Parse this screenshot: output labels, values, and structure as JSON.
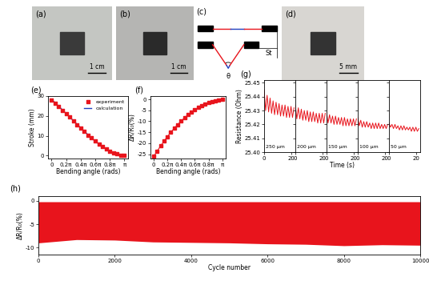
{
  "images": [
    {
      "label": "(a)",
      "scale_bar": "1 cm"
    },
    {
      "label": "(b)",
      "scale_bar": "1 cm"
    },
    {
      "label": "(d)",
      "scale_bar": "5 mm"
    }
  ],
  "diagram": {
    "label": "(c)",
    "angle": "θ",
    "stroke": "St"
  },
  "chart_data": [
    {
      "type": "line",
      "title": "(e)",
      "x_label": "Bending angle (rads)",
      "y_label": "Stroke (mm)",
      "x": [
        0,
        0.157,
        0.314,
        0.471,
        0.628,
        0.785,
        0.942,
        1.1,
        1.257,
        1.414,
        1.571,
        1.728,
        1.885,
        2.042,
        2.199,
        2.356,
        2.513,
        2.67,
        2.827,
        2.985,
        3.142
      ],
      "series": [
        {
          "name": "experiment",
          "type": "scatter",
          "marker": "square",
          "color": "#e8141c",
          "values": [
            28.0,
            26.3,
            24.6,
            22.8,
            21.0,
            19.3,
            17.4,
            15.6,
            13.8,
            12.1,
            10.4,
            8.8,
            7.3,
            5.9,
            4.6,
            3.4,
            2.3,
            1.4,
            0.8,
            0.3,
            0.1
          ]
        },
        {
          "name": "calculation",
          "type": "line",
          "color": "#1f3fbf",
          "values": [
            28.3,
            26.6,
            24.8,
            23.0,
            21.2,
            19.4,
            17.6,
            15.8,
            14.0,
            12.2,
            10.5,
            8.8,
            7.2,
            5.8,
            4.4,
            3.2,
            2.2,
            1.3,
            0.6,
            0.2,
            0.0
          ]
        }
      ],
      "xlim": [
        -0.15,
        3.3
      ],
      "ylim": [
        -1.5,
        30
      ],
      "xticks": [
        0,
        {
          "value": 0.628,
          "label": "0.2π"
        },
        {
          "value": 1.257,
          "label": "0.4π"
        },
        {
          "value": 1.885,
          "label": "0.6π"
        },
        {
          "value": 2.513,
          "label": "0.8π"
        },
        {
          "value": 3.142,
          "label": "π"
        }
      ],
      "yticks": [
        0,
        10,
        20,
        30
      ],
      "legend": "upper right"
    },
    {
      "type": "line",
      "title": "(f)",
      "x_label": "Bending angle (rads)",
      "y_label": "ΔR/R₀(%)",
      "x": [
        0,
        0.157,
        0.314,
        0.471,
        0.628,
        0.785,
        0.942,
        1.1,
        1.257,
        1.414,
        1.571,
        1.728,
        1.885,
        2.042,
        2.199,
        2.356,
        2.513,
        2.67,
        2.827,
        2.985,
        3.142
      ],
      "values": [
        -26.0,
        -23.6,
        -21.3,
        -19.1,
        -17.0,
        -15.0,
        -13.2,
        -11.5,
        -9.9,
        -8.4,
        -7.0,
        -5.8,
        -4.7,
        -3.7,
        -2.8,
        -2.1,
        -1.5,
        -1.0,
        -0.6,
        -0.3,
        0.0
      ],
      "color": "#e8141c",
      "marker": "square",
      "xlim": [
        -0.15,
        3.3
      ],
      "ylim": [
        -27,
        1.5
      ],
      "xticks": [
        0,
        {
          "value": 0.628,
          "label": "0.2π"
        },
        {
          "value": 1.257,
          "label": "0.4π"
        },
        {
          "value": 1.885,
          "label": "0.6π"
        },
        {
          "value": 2.513,
          "label": "0.8π"
        },
        {
          "value": 3.142,
          "label": "π"
        }
      ],
      "yticks": [
        -25,
        -20,
        -15,
        -10,
        -5,
        0
      ]
    },
    {
      "type": "line",
      "title": "(g)",
      "x_label": "Time (s)",
      "y_label": "Resistance (Ohm)",
      "color": "#e8141c",
      "x": [
        0,
        1.1,
        2.2,
        3.3,
        4.4,
        5.5,
        6.6,
        7.7,
        8.8,
        9.9,
        11.0,
        12.1,
        13.2,
        14.3,
        15.4,
        16.5,
        17.6,
        18.7,
        19.8,
        20.9,
        22.0
      ],
      "segments": [
        {
          "label": "250 μm",
          "values": [
            25.445,
            25.43,
            25.441,
            25.429,
            25.439,
            25.428,
            25.437,
            25.427,
            25.436,
            25.427,
            25.435,
            25.426,
            25.434,
            25.426,
            25.434,
            25.425,
            25.433,
            25.425,
            25.433,
            25.425,
            25.432
          ]
        },
        {
          "label": "200 μm",
          "values": [
            25.434,
            25.424,
            25.432,
            25.424,
            25.431,
            25.423,
            25.43,
            25.423,
            25.43,
            25.422,
            25.429,
            25.422,
            25.429,
            25.422,
            25.428,
            25.421,
            25.428,
            25.421,
            25.428,
            25.421,
            25.428
          ]
        },
        {
          "label": "150 μm",
          "values": [
            25.429,
            25.421,
            25.427,
            25.421,
            25.426,
            25.42,
            25.426,
            25.42,
            25.425,
            25.42,
            25.425,
            25.419,
            25.425,
            25.419,
            25.424,
            25.419,
            25.424,
            25.419,
            25.424,
            25.419,
            25.424
          ]
        },
        {
          "label": "100 μm",
          "values": [
            25.425,
            25.419,
            25.423,
            25.418,
            25.422,
            25.418,
            25.422,
            25.418,
            25.421,
            25.417,
            25.421,
            25.417,
            25.421,
            25.417,
            25.421,
            25.417,
            25.42,
            25.417,
            25.42,
            25.417,
            25.42
          ]
        },
        {
          "label": "50 μm",
          "values": [
            25.421,
            25.418,
            25.42,
            25.417,
            25.42,
            25.417,
            25.419,
            25.416,
            25.419,
            25.416,
            25.419,
            25.416,
            25.418,
            25.416,
            25.418,
            25.415,
            25.418,
            25.415,
            25.418,
            25.415,
            25.417
          ]
        }
      ],
      "xlim": [
        0,
        23
      ],
      "xticks": [
        0,
        20
      ],
      "ylim": [
        25.4,
        25.452
      ],
      "yticks": [
        {
          "value": 25.4,
          "label": "25.40"
        },
        25.41,
        25.42,
        25.43,
        25.44,
        25.45
      ]
    },
    {
      "type": "area",
      "title": "(h)",
      "x_label": "Cycle number",
      "y_label": "ΔR/R₀(%)",
      "color": "#e8141c",
      "x": [
        0,
        1000,
        2000,
        3000,
        4000,
        5000,
        6000,
        7000,
        8000,
        9000,
        10000
      ],
      "upper": [
        -0.2,
        -0.2,
        -0.2,
        -0.2,
        -0.2,
        -0.2,
        -0.2,
        -0.2,
        -0.2,
        -0.2,
        -0.2
      ],
      "lower": [
        -9.0,
        -8.3,
        -8.4,
        -8.8,
        -8.9,
        -9.0,
        -9.2,
        -9.3,
        -9.6,
        -9.4,
        -9.5
      ],
      "xlim": [
        0,
        10000
      ],
      "xticks": [
        0,
        2000,
        4000,
        6000,
        8000,
        10000
      ],
      "ylim": [
        -11.5,
        1
      ],
      "yticks": [
        -10,
        -5,
        0
      ]
    }
  ]
}
